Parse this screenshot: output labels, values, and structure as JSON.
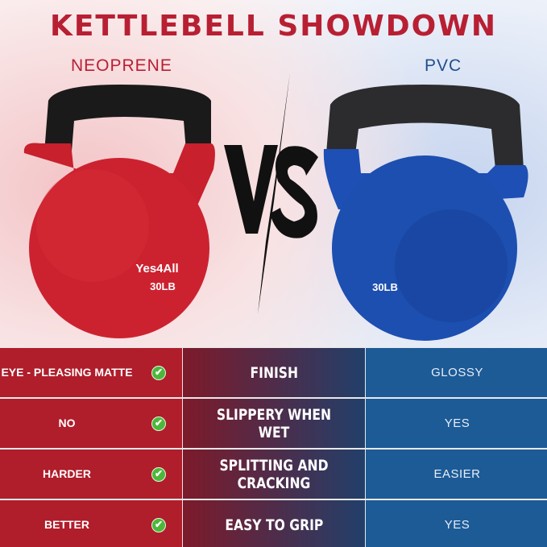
{
  "title": "KETTLEBELL SHOWDOWN",
  "left_label": "NEOPRENE",
  "right_label": "PVC",
  "vs": "VS",
  "left_kettlebell": {
    "brand": "Yes4All",
    "weight": "30LB",
    "color": "#c8202c"
  },
  "right_kettlebell": {
    "weight": "30LB",
    "color": "#1c4fb0"
  },
  "colors": {
    "red": "#b01d2b",
    "blue": "#1d5b97",
    "check": "#4cb83a"
  },
  "rows": [
    {
      "neoprene": "EYE - PLEASING MATTE",
      "feature": "FINISH",
      "pvc": "GLOSSY"
    },
    {
      "neoprene": "NO",
      "feature": "SLIPPERY WHEN WET",
      "pvc": "YES"
    },
    {
      "neoprene": "HARDER",
      "feature": "SPLITTING AND CRACKING",
      "pvc": "EASIER"
    },
    {
      "neoprene": "BETTER",
      "feature": "EASY TO GRIP",
      "pvc": "YES"
    }
  ],
  "check_icon": "check-circle-icon"
}
